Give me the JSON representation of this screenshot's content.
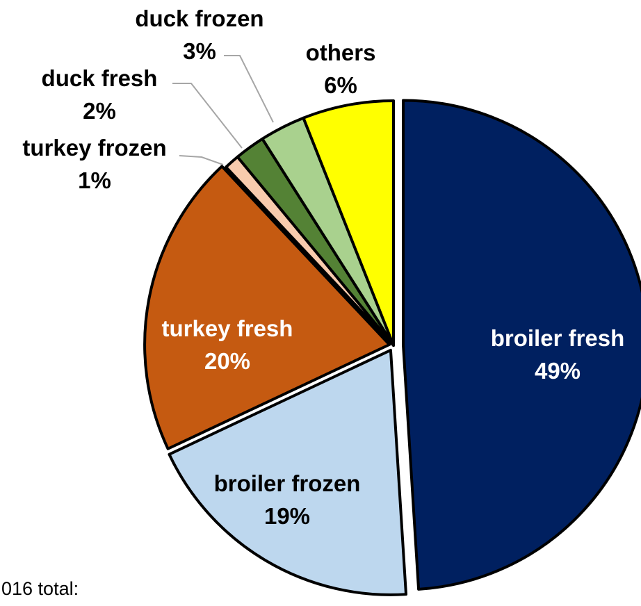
{
  "chart_data": {
    "type": "pie",
    "title": "",
    "note": "016 total:",
    "slices": [
      {
        "name": "broiler fresh",
        "value": 49,
        "value_label": "49%",
        "color": "#002060",
        "label_color": "#ffffff"
      },
      {
        "name": "broiler frozen",
        "value": 19,
        "value_label": "19%",
        "color": "#bdd7ee",
        "label_color": "#000000"
      },
      {
        "name": "turkey fresh",
        "value": 20,
        "value_label": "20%",
        "color": "#c55a11",
        "label_color": "#ffffff"
      },
      {
        "name": "turkey frozen",
        "value": 1,
        "value_label": "1%",
        "color": "#f8cbad",
        "label_color": "#000000"
      },
      {
        "name": "duck fresh",
        "value": 2,
        "value_label": "2%",
        "color": "#548235",
        "label_color": "#000000"
      },
      {
        "name": "duck frozen",
        "value": 3,
        "value_label": "3%",
        "color": "#a9d18e",
        "label_color": "#000000"
      },
      {
        "name": "others",
        "value": 6,
        "value_label": "6%",
        "color": "#ffff00",
        "label_color": "#000000"
      }
    ]
  }
}
